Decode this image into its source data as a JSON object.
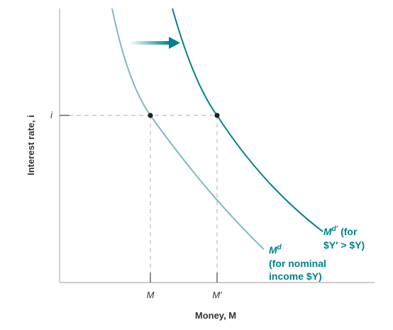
{
  "diagram": {
    "y_axis_title": "Interest rate, i",
    "x_axis_title": "Money, M",
    "interest_label": "i",
    "money_label_1": "M",
    "money_label_2": "M′",
    "curve_old": {
      "label_main": "M",
      "label_sup": "d",
      "line2": "(for nominal",
      "line3": "income $Y)"
    },
    "curve_new": {
      "label_main": "M",
      "label_sup": "d′",
      "label_tail": " (for",
      "line2": "$Y′ > $Y)"
    },
    "colors": {
      "curve_old": "#7fb9c0",
      "curve_new": "#00808a",
      "arrow": "#00808a"
    },
    "arrow_icon": "right-arrow-icon"
  }
}
